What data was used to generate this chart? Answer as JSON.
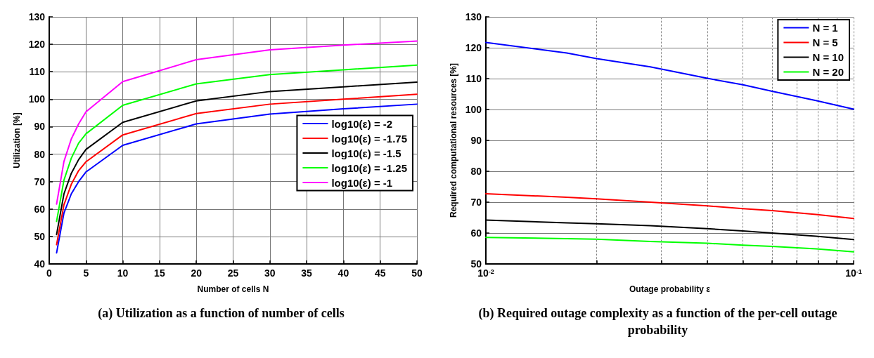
{
  "chart_data": [
    {
      "type": "line",
      "xlabel": "Number of cells N",
      "ylabel": "Utilization [%]",
      "x": [
        1,
        2,
        3,
        4,
        5,
        10,
        20,
        30,
        40,
        50
      ],
      "series": [
        {
          "name": "log10(ε) = -2",
          "color": "#0000ff",
          "values": [
            44,
            58.5,
            65.5,
            70,
            73.5,
            83.2,
            91,
            94.6,
            96.5,
            98.2
          ]
        },
        {
          "name": "log10(ε) = -1.75",
          "color": "#ff0000",
          "values": [
            47,
            61.5,
            69,
            74,
            77.2,
            87,
            94.8,
            98.2,
            100,
            101.8
          ]
        },
        {
          "name": "log10(ε) = -1.5",
          "color": "#000000",
          "values": [
            50.7,
            65.5,
            73,
            78,
            81.7,
            91.6,
            99.4,
            102.8,
            104.5,
            106.2
          ]
        },
        {
          "name": "log10(ε) = -1.25",
          "color": "#00ff00",
          "values": [
            55.5,
            70.5,
            78.5,
            84,
            87.4,
            97.8,
            105.6,
            109,
            110.7,
            112.4
          ]
        },
        {
          "name": "log10(ε) = -1",
          "color": "#ff00ff",
          "values": [
            61.8,
            77.3,
            85.5,
            91,
            95.4,
            106.4,
            114.4,
            118,
            119.7,
            121.2
          ]
        }
      ],
      "xlim": [
        0,
        50
      ],
      "xticks": [
        0,
        5,
        10,
        15,
        20,
        25,
        30,
        35,
        40,
        45,
        50
      ],
      "ylim": [
        40,
        130
      ],
      "yticks": [
        40,
        50,
        60,
        70,
        80,
        90,
        100,
        110,
        120,
        130
      ],
      "grid": true,
      "legend": "right",
      "marker": "none",
      "line_style": "solid",
      "annotations": [
        "(a) Utilization as a function of number of cells"
      ]
    },
    {
      "type": "line",
      "xlabel": "Outage probability ε",
      "ylabel": "Required computational resources [%]",
      "x": [
        0.01,
        0.0166,
        0.02,
        0.028,
        0.04,
        0.05,
        0.06,
        0.079,
        0.1
      ],
      "series": [
        {
          "name": "N = 1",
          "color": "#0000ff",
          "values": [
            121.7,
            118.3,
            116.5,
            113.8,
            110.1,
            108,
            105.9,
            102.9,
            100.1
          ]
        },
        {
          "name": "N = 5",
          "color": "#ff0000",
          "values": [
            72.7,
            71.6,
            71.1,
            70,
            68.8,
            67.9,
            67.3,
            66,
            64.7
          ]
        },
        {
          "name": "N = 10",
          "color": "#000000",
          "values": [
            64.2,
            63.3,
            63,
            62.4,
            61.4,
            60.7,
            60,
            59,
            57.9
          ]
        },
        {
          "name": "N = 20",
          "color": "#00ff00",
          "values": [
            58.6,
            58.2,
            58,
            57.3,
            56.7,
            56.1,
            55.7,
            54.9,
            53.9
          ]
        }
      ],
      "log": "x",
      "xlim": [
        0.01,
        0.1
      ],
      "xticks": [
        {
          "value": 0.01,
          "label": "10$^{-2}$"
        },
        {
          "value": 0.02,
          "label": null
        },
        {
          "value": 0.03,
          "label": null
        },
        {
          "value": 0.04,
          "label": null
        },
        {
          "value": 0.05,
          "label": null
        },
        {
          "value": 0.06,
          "label": null
        },
        {
          "value": 0.07,
          "label": null
        },
        {
          "value": 0.08,
          "label": null
        },
        {
          "value": 0.09,
          "label": null
        },
        {
          "value": 0.1,
          "label": "10$^{-1}$"
        }
      ],
      "ylim": [
        50,
        130
      ],
      "yticks": [
        50,
        60,
        70,
        80,
        90,
        100,
        110,
        120,
        130
      ],
      "grid": true,
      "legend": "top right",
      "marker": "none",
      "line_style": "solid",
      "annotations": [
        "(b) Required outage complexity as a function of the per-cell outage probability"
      ]
    }
  ]
}
